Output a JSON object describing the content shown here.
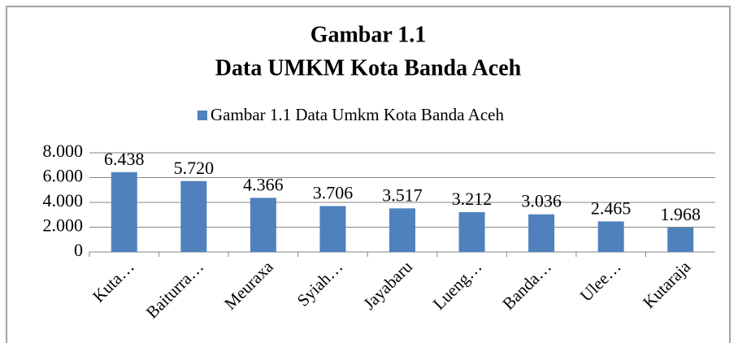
{
  "chart_data": {
    "type": "bar",
    "title": "Gambar 1.1",
    "subtitle": "Data UMKM Kota Banda Aceh",
    "categories": [
      "Kuta…",
      "Baiturra…",
      "Meuraxa",
      "Syiah…",
      "Jayabaru",
      "Lueng…",
      "Banda…",
      "Ulee…",
      "Kutaraja"
    ],
    "series": [
      {
        "name": "Gambar 1.1 Data Umkm Kota Banda Aceh",
        "color": "#4f81bd",
        "values": [
          6438,
          5720,
          4366,
          3706,
          3517,
          3212,
          3036,
          2465,
          1968
        ],
        "value_labels": [
          "6.438",
          "5.720",
          "4.366",
          "3.706",
          "3.517",
          "3.212",
          "3.036",
          "2.465",
          "1.968"
        ]
      }
    ],
    "ylim": [
      0,
      8000
    ],
    "yticks": [
      0,
      {
        "value": 2000,
        "label": "2.000"
      },
      {
        "value": 4000,
        "label": "4.000"
      },
      {
        "value": 6000,
        "label": "6.000"
      },
      {
        "value": 8000,
        "label": "8.000"
      }
    ],
    "grid": true,
    "legend": "top"
  }
}
